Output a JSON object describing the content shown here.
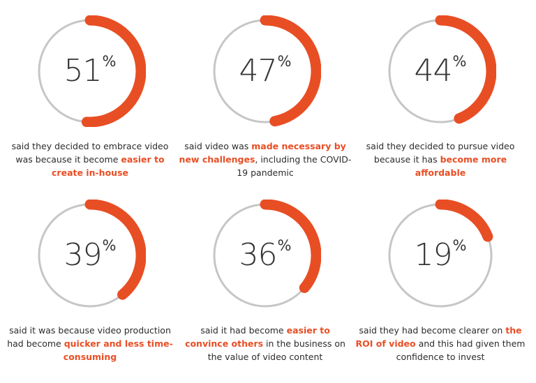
{
  "colors": {
    "accent": "#e84e24",
    "track": "#c6c6c6",
    "text": "#2b2b2b",
    "number": "#333333"
  },
  "percent_sign": "%",
  "chart_data": {
    "type": "donut-gauges",
    "unit": "%",
    "gauges": [
      {
        "value": 51,
        "caption": [
          {
            "text": "said they decided to embrace video was because it become ",
            "highlight": false
          },
          {
            "text": "easier to create in-house",
            "highlight": true
          }
        ]
      },
      {
        "value": 47,
        "caption": [
          {
            "text": "said video was ",
            "highlight": false
          },
          {
            "text": "made necessary by new challenges",
            "highlight": true
          },
          {
            "text": ", including the COVID-19 pandemic",
            "highlight": false
          }
        ]
      },
      {
        "value": 44,
        "caption": [
          {
            "text": "said they decided to pursue video because it has ",
            "highlight": false
          },
          {
            "text": "become more affordable",
            "highlight": true
          }
        ]
      },
      {
        "value": 39,
        "caption": [
          {
            "text": "said it was because video production had become ",
            "highlight": false
          },
          {
            "text": "quicker and less time-consuming",
            "highlight": true
          }
        ]
      },
      {
        "value": 36,
        "caption": [
          {
            "text": "said it had become ",
            "highlight": false
          },
          {
            "text": "easier to convince others",
            "highlight": true
          },
          {
            "text": " in the business on the value of video content",
            "highlight": false
          }
        ]
      },
      {
        "value": 19,
        "caption": [
          {
            "text": "said they had become clearer on ",
            "highlight": false
          },
          {
            "text": "the ROI of video",
            "highlight": true
          },
          {
            "text": " and this had given them confidence to invest",
            "highlight": false
          }
        ]
      }
    ]
  }
}
